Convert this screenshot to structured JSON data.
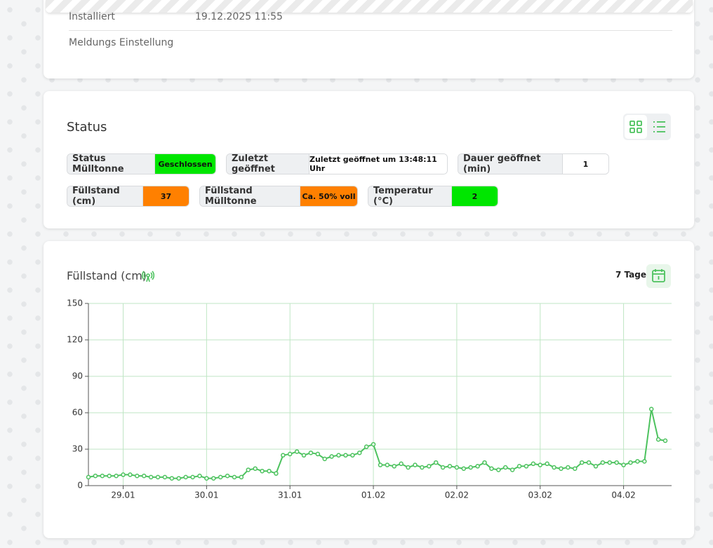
{
  "info": {
    "rows": [
      {
        "label": "Installiert",
        "value": "19.12.2025 11:55"
      },
      {
        "label": "Meldungs Einstellung"
      }
    ]
  },
  "status": {
    "title": "Status",
    "items": [
      {
        "label": "Status Mülltonne",
        "value": "Geschlossen",
        "color": "#00e600"
      },
      {
        "label": "Zuletzt geöffnet",
        "value": "Zuletzt geöffnet um 13:48:11 Uhr",
        "color": "#ffffff"
      },
      {
        "label": "Dauer geöffnet (min)",
        "value": "1",
        "color": "#ffffff"
      },
      {
        "label": "Füllstand (cm)",
        "value": "37",
        "color": "#ff8000"
      },
      {
        "label": "Füllstand Mülltonne",
        "value": "Ca. 50% voll",
        "color": "#ff8000"
      },
      {
        "label": "Temperatur (°C)",
        "value": "2",
        "color": "#00e600"
      }
    ]
  },
  "chart_data": {
    "type": "line",
    "title": "Füllstand (cm)",
    "range_label": "7 Tage",
    "color": "#4cc25e",
    "grid": true,
    "categories": [
      null,
      null,
      null,
      null,
      null,
      "29.01",
      null,
      null,
      null,
      null,
      null,
      null,
      null,
      null,
      null,
      null,
      null,
      "30.01",
      null,
      null,
      null,
      null,
      null,
      null,
      null,
      null,
      null,
      null,
      null,
      "31.01",
      null,
      null,
      null,
      null,
      null,
      null,
      null,
      null,
      null,
      null,
      null,
      "01.02",
      null,
      null,
      null,
      null,
      null,
      null,
      null,
      null,
      null,
      null,
      null,
      "02.02",
      null,
      null,
      null,
      null,
      null,
      null,
      null,
      null,
      null,
      null,
      null,
      "03.02",
      null,
      null,
      null,
      null,
      null,
      null,
      null,
      null,
      null,
      null,
      null,
      "04.02",
      null,
      null,
      null,
      null,
      null,
      null
    ],
    "values": [
      7,
      8,
      8,
      8,
      8,
      9,
      9,
      8,
      8,
      7,
      7,
      7,
      6,
      6,
      7,
      7,
      8,
      6,
      6,
      7,
      8,
      7,
      7,
      13,
      14,
      12,
      12,
      10,
      25,
      26,
      28,
      25,
      27,
      26,
      22,
      24,
      25,
      25,
      25,
      27,
      32,
      34,
      17,
      17,
      16,
      18,
      15,
      17,
      15,
      16,
      19,
      15,
      16,
      15,
      14,
      15,
      16,
      19,
      14,
      13,
      15,
      13,
      16,
      16,
      18,
      17,
      18,
      15,
      14,
      15,
      14,
      19,
      19,
      16,
      19,
      19,
      19,
      17,
      19,
      20,
      20,
      63,
      38,
      37
    ],
    "ylim": [
      0,
      150
    ],
    "yticks": [
      0,
      30,
      60,
      90,
      120,
      150
    ]
  }
}
